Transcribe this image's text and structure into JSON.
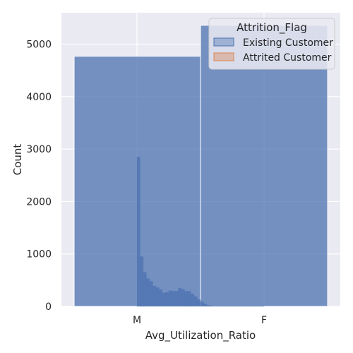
{
  "chart_data": {
    "type": "bar",
    "title": "",
    "xlabel": "Avg_Utilization_Ratio",
    "ylabel": "Count",
    "ylim": [
      0,
      5600
    ],
    "yticks": [
      0,
      1000,
      2000,
      3000,
      4000,
      5000
    ],
    "x_categories": [
      "M",
      "F"
    ],
    "grid": true,
    "legend": {
      "title": "Attrition_Flag",
      "placement": "top-right",
      "entries": [
        {
          "name": "Existing Customer",
          "color": "#4c72b0"
        },
        {
          "name": "Attrited Customer",
          "color": "#dd8452"
        }
      ]
    },
    "series": [
      {
        "name": "Existing Customer",
        "kind": "category-bars",
        "color": "#4c72b0",
        "categories": [
          "M",
          "F"
        ],
        "values": [
          4770,
          5360
        ]
      },
      {
        "name": "Existing Customer",
        "kind": "histogram",
        "color": "#4c72b0",
        "x_range": [
          0,
          1
        ],
        "bin_values": [
          2850,
          950,
          650,
          530,
          480,
          390,
          360,
          320,
          260,
          270,
          300,
          290,
          290,
          350,
          330,
          290,
          290,
          240,
          190,
          130,
          90,
          50,
          20,
          10,
          5,
          5,
          5,
          5,
          5,
          5,
          5,
          5,
          5,
          5,
          5,
          5,
          5,
          5,
          5,
          5
        ]
      }
    ]
  }
}
